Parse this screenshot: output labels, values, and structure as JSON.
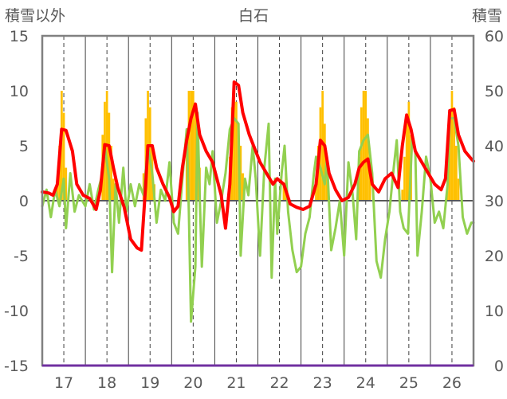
{
  "chart_data": {
    "type": "bar+line",
    "title": "白石",
    "ylabel_left": "積雪以外",
    "ylabel_right": "積雪",
    "y_left_range": [
      -15,
      15
    ],
    "y_left_ticks": [
      "15",
      "10",
      "5",
      "0",
      "-5",
      "-10",
      "-15"
    ],
    "y_right_range": [
      0,
      60
    ],
    "y_right_ticks": [
      "60",
      "50",
      "40",
      "30",
      "20",
      "10",
      "0"
    ],
    "x_range": [
      16.5,
      26.5
    ],
    "x_ticks": [
      "17",
      "18",
      "19",
      "20",
      "21",
      "22",
      "23",
      "24",
      "25",
      "26"
    ],
    "grid": {
      "vertical_solid_at_halves": true,
      "vertical_dashed_at_integers": true
    },
    "colors": {
      "snow_bar": "#FFC000",
      "red_line": "#FF0000",
      "green_line": "#92D050",
      "zero_line": "#595959",
      "bottom_axis": "#7030A0",
      "frame": "#808080"
    },
    "snow_bars": [
      [
        16.85,
        33
      ],
      [
        16.9,
        40
      ],
      [
        16.95,
        50
      ],
      [
        17.0,
        46
      ],
      [
        17.05,
        36
      ],
      [
        17.85,
        30
      ],
      [
        17.9,
        42
      ],
      [
        17.95,
        48
      ],
      [
        18.0,
        50
      ],
      [
        18.05,
        46
      ],
      [
        18.1,
        40
      ],
      [
        18.15,
        34
      ],
      [
        18.85,
        35
      ],
      [
        18.9,
        45
      ],
      [
        18.95,
        50
      ],
      [
        19.0,
        47
      ],
      [
        19.05,
        40
      ],
      [
        19.1,
        33
      ],
      [
        19.8,
        30
      ],
      [
        19.85,
        40
      ],
      [
        19.9,
        50
      ],
      [
        19.95,
        50
      ],
      [
        20.0,
        50
      ],
      [
        20.05,
        47
      ],
      [
        20.1,
        42
      ],
      [
        20.15,
        36
      ],
      [
        20.8,
        30
      ],
      [
        20.85,
        38
      ],
      [
        20.9,
        47
      ],
      [
        20.95,
        50
      ],
      [
        21.0,
        48
      ],
      [
        21.05,
        44
      ],
      [
        21.1,
        40
      ],
      [
        21.15,
        35
      ],
      [
        22.1,
        33
      ],
      [
        22.15,
        35
      ],
      [
        22.85,
        34
      ],
      [
        22.9,
        40
      ],
      [
        22.95,
        47
      ],
      [
        23.0,
        50
      ],
      [
        23.05,
        44
      ],
      [
        23.1,
        37
      ],
      [
        23.8,
        30
      ],
      [
        23.85,
        38
      ],
      [
        23.9,
        47
      ],
      [
        23.95,
        50
      ],
      [
        24.0,
        50
      ],
      [
        24.05,
        45
      ],
      [
        24.1,
        38
      ],
      [
        24.85,
        32
      ],
      [
        24.9,
        38
      ],
      [
        24.95,
        45
      ],
      [
        25.0,
        48
      ],
      [
        25.05,
        42
      ],
      [
        25.9,
        35
      ],
      [
        25.95,
        45
      ],
      [
        26.0,
        50
      ],
      [
        26.05,
        47
      ],
      [
        26.1,
        40
      ],
      [
        26.15,
        34
      ]
    ],
    "red_series": [
      [
        16.5,
        0.8
      ],
      [
        16.65,
        0.7
      ],
      [
        16.75,
        0.5
      ],
      [
        16.85,
        1.5
      ],
      [
        16.95,
        6.5
      ],
      [
        17.05,
        6.4
      ],
      [
        17.2,
        4.5
      ],
      [
        17.3,
        1.5
      ],
      [
        17.45,
        0.5
      ],
      [
        17.6,
        0.2
      ],
      [
        17.75,
        -0.8
      ],
      [
        17.85,
        1.0
      ],
      [
        17.95,
        5.1
      ],
      [
        18.05,
        5.0
      ],
      [
        18.15,
        3.0
      ],
      [
        18.25,
        1.2
      ],
      [
        18.4,
        -0.6
      ],
      [
        18.55,
        -3.5
      ],
      [
        18.7,
        -4.3
      ],
      [
        18.8,
        -4.5
      ],
      [
        18.9,
        1.5
      ],
      [
        18.95,
        5.0
      ],
      [
        19.05,
        5.0
      ],
      [
        19.15,
        3.0
      ],
      [
        19.3,
        1.5
      ],
      [
        19.45,
        0.3
      ],
      [
        19.55,
        -1.0
      ],
      [
        19.65,
        -0.5
      ],
      [
        19.75,
        3.0
      ],
      [
        19.85,
        5.5
      ],
      [
        19.95,
        7.5
      ],
      [
        20.05,
        8.8
      ],
      [
        20.15,
        6.0
      ],
      [
        20.3,
        4.5
      ],
      [
        20.45,
        3.5
      ],
      [
        20.55,
        2.0
      ],
      [
        20.65,
        0.5
      ],
      [
        20.75,
        -2.5
      ],
      [
        20.85,
        1.5
      ],
      [
        20.95,
        10.8
      ],
      [
        21.05,
        10.5
      ],
      [
        21.15,
        8.0
      ],
      [
        21.3,
        6.0
      ],
      [
        21.45,
        4.5
      ],
      [
        21.55,
        3.5
      ],
      [
        21.7,
        2.5
      ],
      [
        21.85,
        1.5
      ],
      [
        21.95,
        2.0
      ],
      [
        22.1,
        1.5
      ],
      [
        22.25,
        -0.3
      ],
      [
        22.4,
        -0.6
      ],
      [
        22.55,
        -0.8
      ],
      [
        22.7,
        -0.5
      ],
      [
        22.85,
        1.5
      ],
      [
        22.95,
        5.5
      ],
      [
        23.05,
        5.0
      ],
      [
        23.15,
        2.5
      ],
      [
        23.3,
        1.0
      ],
      [
        23.45,
        0.0
      ],
      [
        23.6,
        0.3
      ],
      [
        23.75,
        1.5
      ],
      [
        23.85,
        3.0
      ],
      [
        23.95,
        3.5
      ],
      [
        24.05,
        3.8
      ],
      [
        24.15,
        1.5
      ],
      [
        24.3,
        0.8
      ],
      [
        24.45,
        2.0
      ],
      [
        24.6,
        2.5
      ],
      [
        24.75,
        1.2
      ],
      [
        24.85,
        5.0
      ],
      [
        24.95,
        7.8
      ],
      [
        25.05,
        6.5
      ],
      [
        25.15,
        4.5
      ],
      [
        25.3,
        3.5
      ],
      [
        25.45,
        2.5
      ],
      [
        25.6,
        1.5
      ],
      [
        25.75,
        1.0
      ],
      [
        25.85,
        2.0
      ],
      [
        25.95,
        8.2
      ],
      [
        26.05,
        8.3
      ],
      [
        26.15,
        6.0
      ],
      [
        26.3,
        4.5
      ],
      [
        26.45,
        3.8
      ],
      [
        26.5,
        3.6
      ]
    ],
    "green_series": [
      [
        16.5,
        -0.5
      ],
      [
        16.6,
        1.0
      ],
      [
        16.7,
        -1.5
      ],
      [
        16.8,
        1.0
      ],
      [
        16.9,
        -0.5
      ],
      [
        17.0,
        2.0
      ],
      [
        17.05,
        -2.5
      ],
      [
        17.15,
        2.5
      ],
      [
        17.25,
        -1.0
      ],
      [
        17.35,
        0.5
      ],
      [
        17.5,
        -0.5
      ],
      [
        17.6,
        1.5
      ],
      [
        17.7,
        -0.8
      ],
      [
        17.8,
        1.0
      ],
      [
        17.9,
        2.5
      ],
      [
        17.95,
        5.0
      ],
      [
        18.05,
        2.0
      ],
      [
        18.12,
        -6.5
      ],
      [
        18.2,
        1.5
      ],
      [
        18.28,
        -2.0
      ],
      [
        18.38,
        3.0
      ],
      [
        18.45,
        -1.0
      ],
      [
        18.55,
        1.5
      ],
      [
        18.65,
        -0.5
      ],
      [
        18.75,
        1.5
      ],
      [
        18.85,
        0.5
      ],
      [
        18.95,
        5.0
      ],
      [
        19.05,
        2.5
      ],
      [
        19.15,
        -2.0
      ],
      [
        19.25,
        1.0
      ],
      [
        19.35,
        0.0
      ],
      [
        19.45,
        3.5
      ],
      [
        19.55,
        -2.0
      ],
      [
        19.65,
        -3.0
      ],
      [
        19.75,
        2.0
      ],
      [
        19.85,
        6.5
      ],
      [
        19.9,
        -1.0
      ],
      [
        19.95,
        -11.0
      ],
      [
        20.05,
        -6.0
      ],
      [
        20.1,
        8.0
      ],
      [
        20.15,
        0.5
      ],
      [
        20.2,
        -6.0
      ],
      [
        20.3,
        3.0
      ],
      [
        20.38,
        1.5
      ],
      [
        20.45,
        4.5
      ],
      [
        20.55,
        -2.0
      ],
      [
        20.65,
        0.0
      ],
      [
        20.75,
        2.5
      ],
      [
        20.85,
        6.5
      ],
      [
        20.95,
        7.5
      ],
      [
        21.05,
        7.0
      ],
      [
        21.1,
        -5.0
      ],
      [
        21.2,
        2.0
      ],
      [
        21.28,
        0.5
      ],
      [
        21.38,
        5.0
      ],
      [
        21.45,
        2.0
      ],
      [
        21.55,
        -5.0
      ],
      [
        21.65,
        3.0
      ],
      [
        21.75,
        7.0
      ],
      [
        21.82,
        -7.0
      ],
      [
        21.9,
        2.0
      ],
      [
        21.95,
        -3.0
      ],
      [
        22.05,
        2.5
      ],
      [
        22.12,
        5.0
      ],
      [
        22.2,
        -1.0
      ],
      [
        22.3,
        -4.5
      ],
      [
        22.4,
        -6.5
      ],
      [
        22.5,
        -6.0
      ],
      [
        22.6,
        -3.0
      ],
      [
        22.7,
        -1.5
      ],
      [
        22.8,
        2.5
      ],
      [
        22.85,
        4.0
      ],
      [
        22.95,
        3.0
      ],
      [
        23.05,
        1.5
      ],
      [
        23.1,
        4.0
      ],
      [
        23.2,
        -4.5
      ],
      [
        23.3,
        -2.5
      ],
      [
        23.4,
        0.0
      ],
      [
        23.5,
        -5.0
      ],
      [
        23.6,
        3.5
      ],
      [
        23.7,
        0.5
      ],
      [
        23.78,
        -3.5
      ],
      [
        23.85,
        4.5
      ],
      [
        23.95,
        5.5
      ],
      [
        24.05,
        6.0
      ],
      [
        24.15,
        2.5
      ],
      [
        24.25,
        -5.5
      ],
      [
        24.35,
        -7.0
      ],
      [
        24.45,
        -3.5
      ],
      [
        24.55,
        -1.0
      ],
      [
        24.65,
        3.0
      ],
      [
        24.72,
        5.5
      ],
      [
        24.8,
        -1.0
      ],
      [
        24.88,
        -2.5
      ],
      [
        24.98,
        -3.0
      ],
      [
        25.08,
        6.0
      ],
      [
        25.15,
        4.5
      ],
      [
        25.2,
        -5.0
      ],
      [
        25.3,
        -1.0
      ],
      [
        25.4,
        4.0
      ],
      [
        25.5,
        2.0
      ],
      [
        25.6,
        -2.0
      ],
      [
        25.7,
        -1.0
      ],
      [
        25.8,
        -2.5
      ],
      [
        25.9,
        1.5
      ],
      [
        25.95,
        7.5
      ],
      [
        26.05,
        7.5
      ],
      [
        26.15,
        5.0
      ],
      [
        26.25,
        -1.5
      ],
      [
        26.35,
        -3.0
      ],
      [
        26.45,
        -2.0
      ],
      [
        26.5,
        -2.0
      ]
    ]
  }
}
